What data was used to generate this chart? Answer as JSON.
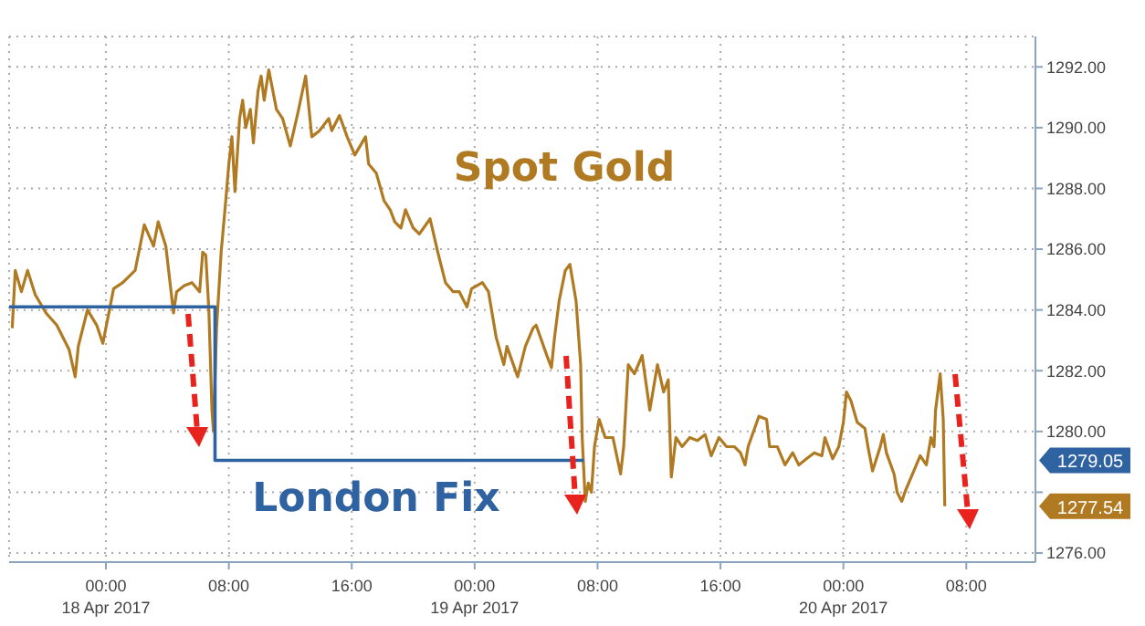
{
  "chart_data": {
    "type": "line",
    "xlim": [
      "2017-04-17T17:42",
      "2017-04-20T12:30"
    ],
    "ylim": [
      1275.7,
      1293
    ],
    "xticks": [
      {
        "value": "2017-04-18T00:00",
        "label": "00:00\n18 Apr 2017"
      },
      {
        "value": "2017-04-18T08:00",
        "label": "08:00"
      },
      {
        "value": "2017-04-18T16:00",
        "label": "16:00"
      },
      {
        "value": "2017-04-19T00:00",
        "label": "00:00\n19 Apr 2017"
      },
      {
        "value": "2017-04-19T08:00",
        "label": "08:00"
      },
      {
        "value": "2017-04-19T16:00",
        "label": "16:00"
      },
      {
        "value": "2017-04-20T00:00",
        "label": "00:00\n20 Apr 2017"
      },
      {
        "value": "2017-04-20T08:00",
        "label": "08:00"
      }
    ],
    "yticks": [
      {
        "value": 1276,
        "label": "1276.00"
      },
      {
        "value": 1278,
        "label": null
      },
      {
        "value": 1280,
        "label": "1280.00"
      },
      {
        "value": 1282,
        "label": "1282.00"
      },
      {
        "value": 1284,
        "label": "1284.00"
      },
      {
        "value": 1286,
        "label": "1286.00"
      },
      {
        "value": 1288,
        "label": "1288.00"
      },
      {
        "value": 1290,
        "label": "1290.00"
      },
      {
        "value": 1292,
        "label": "1292.00"
      }
    ],
    "grid": true,
    "legend": false,
    "line_style": "solid",
    "marker": "none",
    "series": [
      {
        "name": "Spot Gold",
        "color": "#b07a22",
        "x": [
          "2017-04-17T17:54",
          "2017-04-17T18:06",
          "2017-04-17T18:30",
          "2017-04-17T18:54",
          "2017-04-17T19:24",
          "2017-04-17T20:06",
          "2017-04-17T20:48",
          "2017-04-17T21:36",
          "2017-04-17T22:00",
          "2017-04-17T22:12",
          "2017-04-17T22:48",
          "2017-04-17T23:24",
          "2017-04-17T23:48",
          "2017-04-18T00:30",
          "2017-04-18T01:06",
          "2017-04-18T01:54",
          "2017-04-18T02:30",
          "2017-04-18T03:06",
          "2017-04-18T03:24",
          "2017-04-18T03:54",
          "2017-04-18T04:24",
          "2017-04-18T04:36",
          "2017-04-18T05:06",
          "2017-04-18T05:36",
          "2017-04-18T06:06",
          "2017-04-18T06:18",
          "2017-04-18T06:30",
          "2017-04-18T06:42",
          "2017-04-18T06:54",
          "2017-04-18T07:00",
          "2017-04-18T07:12",
          "2017-04-18T07:30",
          "2017-04-18T07:48",
          "2017-04-18T08:00",
          "2017-04-18T08:12",
          "2017-04-18T08:24",
          "2017-04-18T08:42",
          "2017-04-18T08:54",
          "2017-04-18T09:06",
          "2017-04-18T09:24",
          "2017-04-18T09:36",
          "2017-04-18T09:54",
          "2017-04-18T10:06",
          "2017-04-18T10:18",
          "2017-04-18T10:36",
          "2017-04-18T11:06",
          "2017-04-18T11:30",
          "2017-04-18T12:00",
          "2017-04-18T12:30",
          "2017-04-18T13:00",
          "2017-04-18T13:24",
          "2017-04-18T13:54",
          "2017-04-18T14:30",
          "2017-04-18T14:42",
          "2017-04-18T15:12",
          "2017-04-18T15:42",
          "2017-04-18T16:12",
          "2017-04-18T16:54",
          "2017-04-18T17:06",
          "2017-04-18T17:36",
          "2017-04-18T18:06",
          "2017-04-18T18:30",
          "2017-04-18T18:48",
          "2017-04-18T19:12",
          "2017-04-18T19:30",
          "2017-04-18T20:00",
          "2017-04-18T20:24",
          "2017-04-18T21:06",
          "2017-04-18T21:36",
          "2017-04-18T22:06",
          "2017-04-18T22:36",
          "2017-04-18T23:00",
          "2017-04-18T23:30",
          "2017-04-18T23:48",
          "2017-04-19T00:30",
          "2017-04-19T00:54",
          "2017-04-19T01:24",
          "2017-04-19T01:54",
          "2017-04-19T02:06",
          "2017-04-19T02:48",
          "2017-04-19T03:18",
          "2017-04-19T03:48",
          "2017-04-19T04:00",
          "2017-04-19T04:42",
          "2017-04-19T05:00",
          "2017-04-19T05:12",
          "2017-04-19T05:30",
          "2017-04-19T05:54",
          "2017-04-19T06:12",
          "2017-04-19T06:24",
          "2017-04-19T06:36",
          "2017-04-19T06:54",
          "2017-04-19T07:00",
          "2017-04-19T07:12",
          "2017-04-19T07:24",
          "2017-04-19T07:36",
          "2017-04-19T07:48",
          "2017-04-19T08:06",
          "2017-04-19T08:30",
          "2017-04-19T09:00",
          "2017-04-19T09:30",
          "2017-04-19T09:42",
          "2017-04-19T10:00",
          "2017-04-19T10:24",
          "2017-04-19T10:54",
          "2017-04-19T11:24",
          "2017-04-19T11:54",
          "2017-04-19T12:18",
          "2017-04-19T12:36",
          "2017-04-19T12:48",
          "2017-04-19T13:06",
          "2017-04-19T13:30",
          "2017-04-19T14:00",
          "2017-04-19T14:30",
          "2017-04-19T15:00",
          "2017-04-19T15:24",
          "2017-04-19T15:54",
          "2017-04-19T16:24",
          "2017-04-19T16:54",
          "2017-04-19T17:18",
          "2017-04-19T17:36",
          "2017-04-19T17:48",
          "2017-04-19T18:30",
          "2017-04-19T19:00",
          "2017-04-19T19:12",
          "2017-04-19T19:42",
          "2017-04-19T20:12",
          "2017-04-19T20:42",
          "2017-04-19T21:06",
          "2017-04-19T21:36",
          "2017-04-19T22:06",
          "2017-04-19T22:36",
          "2017-04-19T22:48",
          "2017-04-19T23:18",
          "2017-04-19T23:42",
          "2017-04-20T00:00",
          "2017-04-20T00:12",
          "2017-04-20T00:30",
          "2017-04-20T00:54",
          "2017-04-20T01:24",
          "2017-04-20T01:36",
          "2017-04-20T01:54",
          "2017-04-20T02:24",
          "2017-04-20T02:36",
          "2017-04-20T02:48",
          "2017-04-20T03:18",
          "2017-04-20T03:30",
          "2017-04-20T03:48",
          "2017-04-20T04:00",
          "2017-04-20T04:30",
          "2017-04-20T05:00",
          "2017-04-20T05:24",
          "2017-04-20T05:42",
          "2017-04-20T05:54",
          "2017-04-20T06:00",
          "2017-04-20T06:18",
          "2017-04-20T06:30",
          "2017-04-20T06:36"
        ],
        "values": [
          1283.4,
          1285.3,
          1284.6,
          1285.3,
          1284.5,
          1283.9,
          1283.5,
          1282.7,
          1281.8,
          1282.8,
          1284.0,
          1283.5,
          1282.9,
          1284.7,
          1284.9,
          1285.3,
          1286.8,
          1286.1,
          1286.9,
          1286.1,
          1283.9,
          1284.6,
          1284.8,
          1284.9,
          1284.6,
          1285.9,
          1285.8,
          1284.0,
          1280.7,
          1280.0,
          1283.4,
          1285.9,
          1287.6,
          1288.8,
          1289.7,
          1287.9,
          1290.3,
          1290.9,
          1290.0,
          1290.6,
          1289.5,
          1291.2,
          1291.7,
          1290.9,
          1291.9,
          1290.6,
          1290.3,
          1289.4,
          1290.5,
          1291.7,
          1289.7,
          1289.9,
          1290.3,
          1289.9,
          1290.4,
          1289.7,
          1289.1,
          1289.7,
          1288.8,
          1288.5,
          1287.6,
          1287.3,
          1286.9,
          1286.7,
          1287.3,
          1286.7,
          1286.5,
          1287.0,
          1285.9,
          1284.9,
          1284.6,
          1284.6,
          1284.1,
          1284.7,
          1284.9,
          1284.6,
          1283.1,
          1282.2,
          1282.8,
          1281.8,
          1282.8,
          1283.4,
          1283.5,
          1282.5,
          1282.1,
          1283.1,
          1284.3,
          1285.3,
          1285.5,
          1284.9,
          1284.3,
          1282.2,
          1279.8,
          1277.7,
          1278.3,
          1278.0,
          1279.5,
          1280.4,
          1279.8,
          1279.8,
          1278.6,
          1279.5,
          1282.2,
          1281.9,
          1282.5,
          1280.7,
          1282.2,
          1281.3,
          1281.7,
          1278.5,
          1279.8,
          1279.5,
          1279.8,
          1279.7,
          1279.9,
          1279.2,
          1279.8,
          1279.5,
          1279.5,
          1279.3,
          1278.9,
          1279.5,
          1280.5,
          1280.4,
          1279.5,
          1279.5,
          1278.9,
          1279.3,
          1278.9,
          1279.1,
          1279.3,
          1279.2,
          1279.8,
          1279.1,
          1279.5,
          1280.3,
          1281.3,
          1281.0,
          1280.3,
          1280.1,
          1279.5,
          1278.7,
          1279.5,
          1279.9,
          1279.3,
          1278.6,
          1278.0,
          1277.7,
          1278.0,
          1278.6,
          1279.2,
          1278.9,
          1279.8,
          1279.5,
          1280.7,
          1281.9,
          1280.4,
          1277.54
        ]
      },
      {
        "name": "London Fix",
        "type": "step",
        "color": "#2f62a0",
        "x": [
          "2017-04-17T17:42",
          "2017-04-18T07:06",
          "2017-04-19T07:06"
        ],
        "values": [
          1284.1,
          1279.05,
          1279.05
        ]
      }
    ],
    "annotations": [
      "1277.54",
      "1279.05"
    ]
  }
}
